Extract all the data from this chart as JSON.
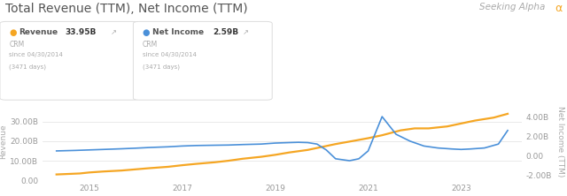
{
  "title": "Total Revenue (TTM), Net Income (TTM)",
  "legend_revenue": "Revenue",
  "legend_net_income": "Net Income",
  "revenue_value": "33.95B",
  "net_income_value": "2.59B",
  "revenue_color": "#f5a623",
  "net_income_color": "#4a90d9",
  "background_color": "#ffffff",
  "grid_color": "#e0e0e0",
  "revenue_x": [
    2014.3,
    2014.8,
    2015.0,
    2015.3,
    2015.7,
    2016.0,
    2016.3,
    2016.7,
    2017.0,
    2017.3,
    2017.7,
    2018.0,
    2018.3,
    2018.7,
    2019.0,
    2019.3,
    2019.7,
    2020.0,
    2020.3,
    2020.7,
    2021.0,
    2021.3,
    2021.7,
    2022.0,
    2022.3,
    2022.7,
    2023.0,
    2023.3,
    2023.7,
    2024.0
  ],
  "revenue_y": [
    3.0,
    3.5,
    4.0,
    4.5,
    5.0,
    5.6,
    6.2,
    6.9,
    7.7,
    8.4,
    9.2,
    10.0,
    11.0,
    12.0,
    13.0,
    14.2,
    15.5,
    17.0,
    18.5,
    20.2,
    21.5,
    23.0,
    25.5,
    26.5,
    26.5,
    27.5,
    29.0,
    30.5,
    32.0,
    33.95
  ],
  "net_income_x": [
    2014.3,
    2014.7,
    2015.0,
    2015.3,
    2015.7,
    2016.0,
    2016.3,
    2016.7,
    2017.0,
    2017.3,
    2017.7,
    2018.0,
    2018.3,
    2018.7,
    2019.0,
    2019.3,
    2019.5,
    2019.7,
    2019.9,
    2020.1,
    2020.3,
    2020.6,
    2020.8,
    2021.0,
    2021.3,
    2021.6,
    2021.9,
    2022.2,
    2022.5,
    2022.8,
    2023.0,
    2023.2,
    2023.5,
    2023.8,
    2024.0
  ],
  "net_income_y": [
    0.5,
    0.55,
    0.6,
    0.65,
    0.72,
    0.78,
    0.85,
    0.92,
    1.0,
    1.05,
    1.08,
    1.1,
    1.15,
    1.2,
    1.3,
    1.35,
    1.38,
    1.35,
    1.2,
    0.6,
    -0.3,
    -0.5,
    -0.3,
    0.5,
    4.0,
    2.2,
    1.5,
    1.0,
    0.8,
    0.7,
    0.65,
    0.7,
    0.8,
    1.2,
    2.59
  ],
  "xlim": [
    2014.0,
    2024.3
  ],
  "ylim_left": [
    0,
    40
  ],
  "ylim_right": [
    -2.5,
    5.5
  ],
  "xticks": [
    2015,
    2017,
    2019,
    2021,
    2023
  ],
  "yticks_left": [
    0,
    10,
    20,
    30
  ],
  "yticks_right": [
    -2.0,
    0.0,
    2.0,
    4.0
  ],
  "ylabel_left": "Revenue",
  "ylabel_right": "Net Income (TTM)",
  "title_fontsize": 10,
  "label_fontsize": 6.5,
  "tick_fontsize": 6.5,
  "box_color": "#f5f5f5",
  "box_border_color": "#dddddd"
}
